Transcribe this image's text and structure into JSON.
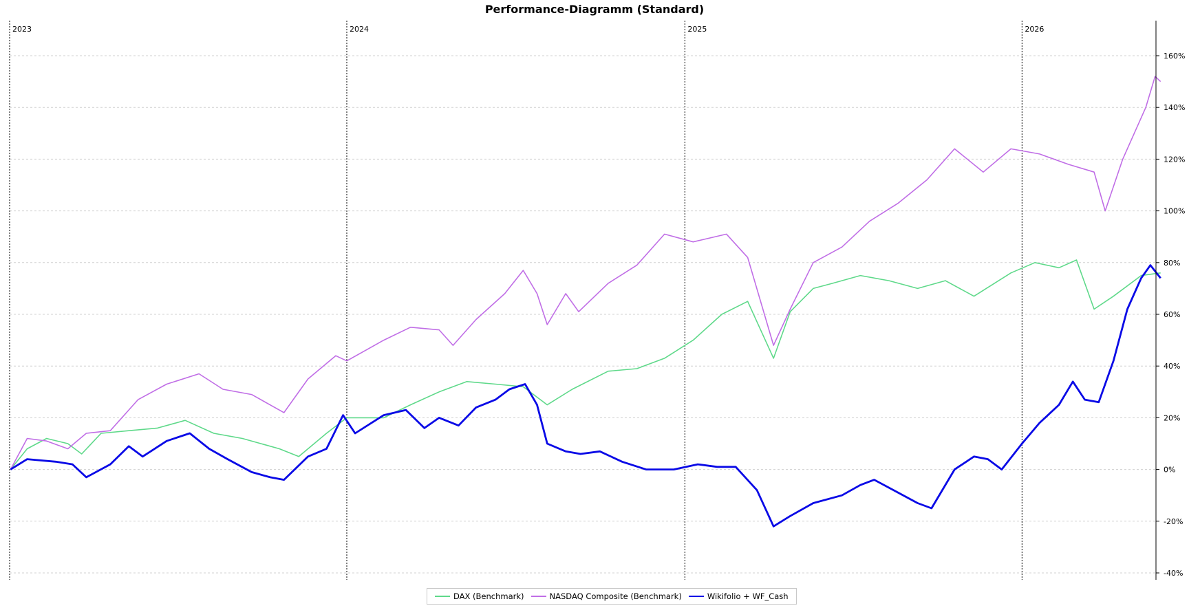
{
  "colors": {
    "dax": "#5fd98a",
    "nasdaq": "#c06ee6",
    "wikifolio": "#0a0ae6"
  },
  "chart_data": {
    "type": "line",
    "title": "Performance-Diagramm (Standard)",
    "xlabel": "",
    "ylabel": "",
    "x_axis": {
      "type": "time",
      "start": "2023-01-01",
      "end": "2026-05-31",
      "year_labels": [
        "2023",
        "2024",
        "2025",
        "2026"
      ]
    },
    "y_axis": {
      "unit": "%",
      "range": [
        -40,
        160
      ],
      "ticks": [
        "160%",
        "140%",
        "120%",
        "100%",
        "80%",
        "60%",
        "40%",
        "20%",
        "0%",
        "-20%",
        "-40%"
      ]
    },
    "grid": {
      "horizontal": true,
      "vertical_year_lines": true
    },
    "legend_position": "bottom-center",
    "series": [
      {
        "name": "DAX (Benchmark)",
        "color": "#5fd98a",
        "points": [
          [
            "2023-01-02",
            0
          ],
          [
            "2023-01-20",
            8
          ],
          [
            "2023-02-10",
            12
          ],
          [
            "2023-03-05",
            10
          ],
          [
            "2023-03-20",
            6
          ],
          [
            "2023-04-10",
            14
          ],
          [
            "2023-05-10",
            15
          ],
          [
            "2023-06-10",
            16
          ],
          [
            "2023-07-10",
            19
          ],
          [
            "2023-08-10",
            14
          ],
          [
            "2023-09-10",
            12
          ],
          [
            "2023-10-20",
            8
          ],
          [
            "2023-11-10",
            5
          ],
          [
            "2023-12-10",
            14
          ],
          [
            "2024-01-01",
            20
          ],
          [
            "2024-02-10",
            20
          ],
          [
            "2024-03-10",
            25
          ],
          [
            "2024-04-10",
            30
          ],
          [
            "2024-05-10",
            34
          ],
          [
            "2024-06-10",
            33
          ],
          [
            "2024-07-10",
            32
          ],
          [
            "2024-08-05",
            25
          ],
          [
            "2024-09-01",
            31
          ],
          [
            "2024-10-10",
            38
          ],
          [
            "2024-11-10",
            39
          ],
          [
            "2024-12-10",
            43
          ],
          [
            "2025-01-10",
            50
          ],
          [
            "2025-02-10",
            60
          ],
          [
            "2025-03-10",
            65
          ],
          [
            "2025-04-07",
            43
          ],
          [
            "2025-04-25",
            61
          ],
          [
            "2025-05-20",
            70
          ],
          [
            "2025-06-10",
            72
          ],
          [
            "2025-07-10",
            75
          ],
          [
            "2025-08-10",
            73
          ],
          [
            "2025-09-10",
            70
          ],
          [
            "2025-10-10",
            73
          ],
          [
            "2025-11-10",
            67
          ],
          [
            "2025-12-20",
            76
          ],
          [
            "2026-01-15",
            80
          ],
          [
            "2026-02-10",
            78
          ],
          [
            "2026-03-01",
            81
          ],
          [
            "2026-03-20",
            62
          ],
          [
            "2026-04-10",
            67
          ],
          [
            "2026-05-10",
            75
          ],
          [
            "2026-05-31",
            76
          ]
        ]
      },
      {
        "name": "NASDAQ Composite (Benchmark)",
        "color": "#c06ee6",
        "points": [
          [
            "2023-01-02",
            0
          ],
          [
            "2023-01-20",
            12
          ],
          [
            "2023-02-10",
            11
          ],
          [
            "2023-03-05",
            8
          ],
          [
            "2023-03-25",
            14
          ],
          [
            "2023-04-20",
            15
          ],
          [
            "2023-05-20",
            27
          ],
          [
            "2023-06-20",
            33
          ],
          [
            "2023-07-25",
            37
          ],
          [
            "2023-08-20",
            31
          ],
          [
            "2023-09-20",
            29
          ],
          [
            "2023-10-25",
            22
          ],
          [
            "2023-11-20",
            35
          ],
          [
            "2023-12-20",
            44
          ],
          [
            "2024-01-01",
            42
          ],
          [
            "2024-02-10",
            50
          ],
          [
            "2024-03-10",
            55
          ],
          [
            "2024-04-10",
            54
          ],
          [
            "2024-04-25",
            48
          ],
          [
            "2024-05-20",
            58
          ],
          [
            "2024-06-20",
            68
          ],
          [
            "2024-07-10",
            77
          ],
          [
            "2024-07-25",
            68
          ],
          [
            "2024-08-05",
            56
          ],
          [
            "2024-08-25",
            68
          ],
          [
            "2024-09-08",
            61
          ],
          [
            "2024-10-10",
            72
          ],
          [
            "2024-11-10",
            79
          ],
          [
            "2024-12-10",
            91
          ],
          [
            "2025-01-10",
            88
          ],
          [
            "2025-02-15",
            91
          ],
          [
            "2025-03-10",
            82
          ],
          [
            "2025-04-07",
            48
          ],
          [
            "2025-04-25",
            62
          ],
          [
            "2025-05-20",
            80
          ],
          [
            "2025-06-20",
            86
          ],
          [
            "2025-07-20",
            96
          ],
          [
            "2025-08-20",
            103
          ],
          [
            "2025-09-20",
            112
          ],
          [
            "2025-10-20",
            124
          ],
          [
            "2025-11-20",
            115
          ],
          [
            "2025-12-20",
            124
          ],
          [
            "2026-01-20",
            122
          ],
          [
            "2026-02-20",
            118
          ],
          [
            "2026-03-20",
            115
          ],
          [
            "2026-04-01",
            100
          ],
          [
            "2026-04-20",
            120
          ],
          [
            "2026-05-15",
            140
          ],
          [
            "2026-05-25",
            152
          ],
          [
            "2026-05-31",
            150
          ]
        ]
      },
      {
        "name": "Wikifolio + WF_Cash",
        "color": "#0a0ae6",
        "points": [
          [
            "2023-01-02",
            0
          ],
          [
            "2023-01-20",
            4
          ],
          [
            "2023-02-20",
            3
          ],
          [
            "2023-03-10",
            2
          ],
          [
            "2023-03-25",
            -3
          ],
          [
            "2023-04-20",
            2
          ],
          [
            "2023-05-10",
            9
          ],
          [
            "2023-05-25",
            5
          ],
          [
            "2023-06-20",
            11
          ],
          [
            "2023-07-15",
            14
          ],
          [
            "2023-08-05",
            8
          ],
          [
            "2023-08-25",
            4
          ],
          [
            "2023-09-20",
            -1
          ],
          [
            "2023-10-10",
            -3
          ],
          [
            "2023-10-25",
            -4
          ],
          [
            "2023-11-20",
            5
          ],
          [
            "2023-12-10",
            8
          ],
          [
            "2023-12-28",
            21
          ],
          [
            "2024-01-10",
            14
          ],
          [
            "2024-02-10",
            21
          ],
          [
            "2024-03-05",
            23
          ],
          [
            "2024-03-25",
            16
          ],
          [
            "2024-04-10",
            20
          ],
          [
            "2024-05-01",
            17
          ],
          [
            "2024-05-20",
            24
          ],
          [
            "2024-06-10",
            27
          ],
          [
            "2024-06-25",
            31
          ],
          [
            "2024-07-12",
            33
          ],
          [
            "2024-07-25",
            25
          ],
          [
            "2024-08-05",
            10
          ],
          [
            "2024-08-25",
            7
          ],
          [
            "2024-09-10",
            6
          ],
          [
            "2024-10-01",
            7
          ],
          [
            "2024-10-25",
            3
          ],
          [
            "2024-11-20",
            0
          ],
          [
            "2024-12-20",
            0
          ],
          [
            "2025-01-15",
            2
          ],
          [
            "2025-02-05",
            1
          ],
          [
            "2025-02-25",
            1
          ],
          [
            "2025-03-20",
            -8
          ],
          [
            "2025-04-07",
            -22
          ],
          [
            "2025-04-25",
            -18
          ],
          [
            "2025-05-20",
            -13
          ],
          [
            "2025-06-20",
            -10
          ],
          [
            "2025-07-10",
            -6
          ],
          [
            "2025-07-25",
            -4
          ],
          [
            "2025-08-20",
            -9
          ],
          [
            "2025-09-10",
            -13
          ],
          [
            "2025-09-25",
            -15
          ],
          [
            "2025-10-20",
            0
          ],
          [
            "2025-11-10",
            5
          ],
          [
            "2025-11-25",
            4
          ],
          [
            "2025-12-10",
            0
          ],
          [
            "2026-01-01",
            10
          ],
          [
            "2026-01-20",
            18
          ],
          [
            "2026-02-10",
            25
          ],
          [
            "2026-02-25",
            34
          ],
          [
            "2026-03-10",
            27
          ],
          [
            "2026-03-25",
            26
          ],
          [
            "2026-04-10",
            42
          ],
          [
            "2026-04-25",
            62
          ],
          [
            "2026-05-10",
            74
          ],
          [
            "2026-05-20",
            79
          ],
          [
            "2026-05-31",
            74
          ]
        ]
      }
    ]
  }
}
